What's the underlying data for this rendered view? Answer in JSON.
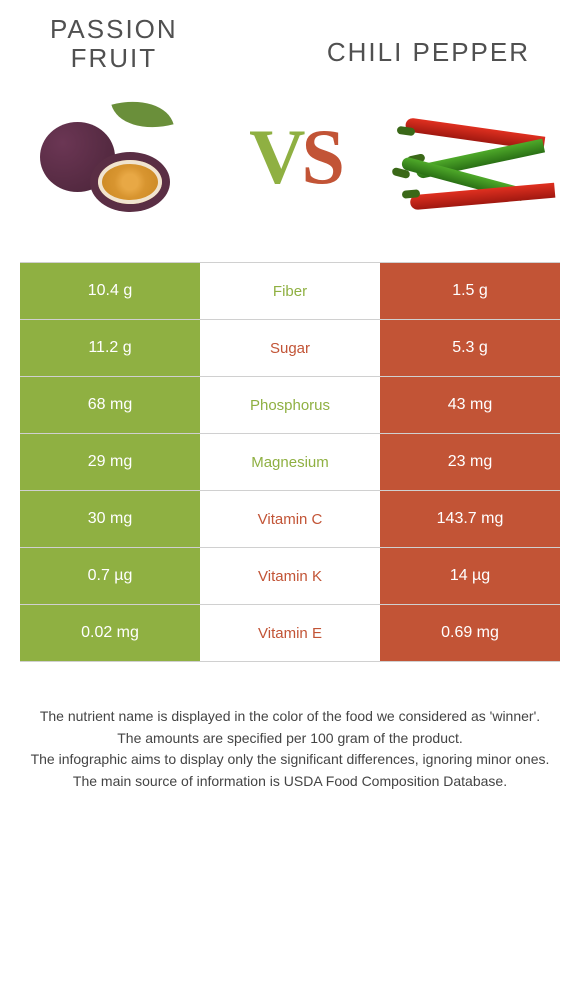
{
  "colors": {
    "left": "#8fb042",
    "right": "#c25436",
    "border": "#d0d0d0",
    "text_dark": "#505050"
  },
  "header": {
    "left_title_line1": "PASSION",
    "left_title_line2": "FRUIT",
    "right_title": "CHILI PEPPER",
    "vs_v": "V",
    "vs_s": "S"
  },
  "nutrients": [
    {
      "name": "Fiber",
      "left": "10.4 g",
      "right": "1.5 g",
      "winner": "left"
    },
    {
      "name": "Sugar",
      "left": "11.2 g",
      "right": "5.3 g",
      "winner": "right"
    },
    {
      "name": "Phosphorus",
      "left": "68 mg",
      "right": "43 mg",
      "winner": "left"
    },
    {
      "name": "Magnesium",
      "left": "29 mg",
      "right": "23 mg",
      "winner": "left"
    },
    {
      "name": "Vitamin C",
      "left": "30 mg",
      "right": "143.7 mg",
      "winner": "right"
    },
    {
      "name": "Vitamin K",
      "left": "0.7 µg",
      "right": "14 µg",
      "winner": "right"
    },
    {
      "name": "Vitamin E",
      "left": "0.02 mg",
      "right": "0.69 mg",
      "winner": "right"
    }
  ],
  "footer": {
    "line1": "The nutrient name is displayed in the color of the food we considered as 'winner'.",
    "line2": "The amounts are specified per 100 gram of the product.",
    "line3": "The infographic aims to display only the significant differences, ignoring minor ones.",
    "line4": "The main source of information is USDA Food Composition Database."
  }
}
